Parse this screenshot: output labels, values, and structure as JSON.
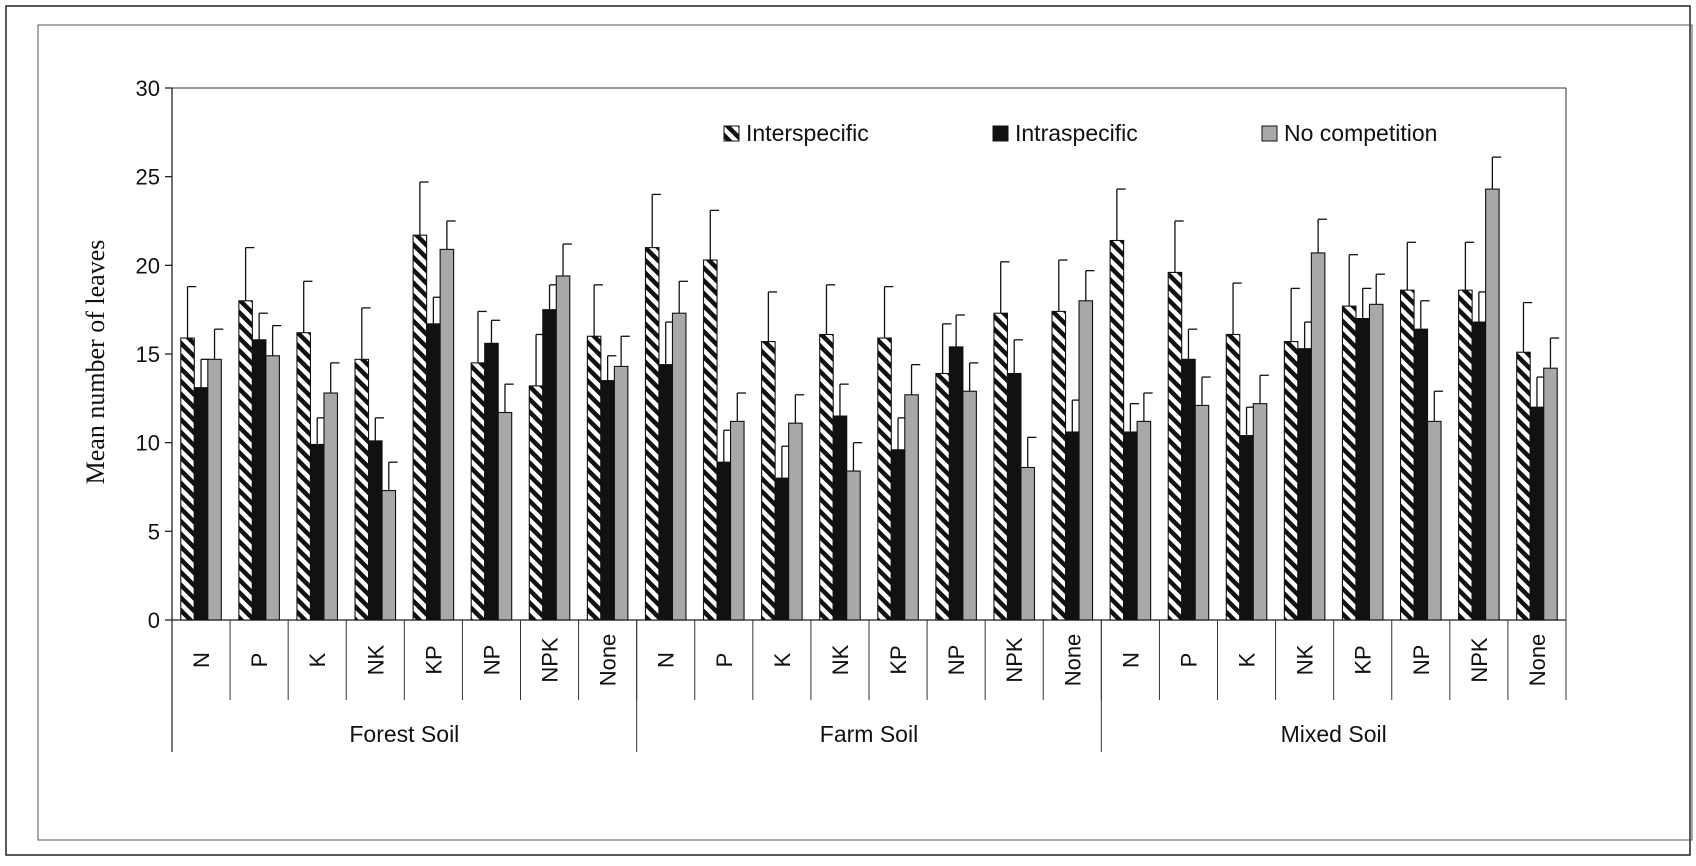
{
  "chart_data": {
    "type": "bar",
    "ylabel": "Mean number of leaves",
    "ylim": [
      0,
      30
    ],
    "yticks": [
      0,
      5,
      10,
      15,
      20,
      25,
      30
    ],
    "grid": false,
    "legend_position": "top-right",
    "groups": [
      {
        "name": "Forest Soil",
        "categories": [
          "N",
          "P",
          "K",
          "NK",
          "KP",
          "NP",
          "NPK",
          "None"
        ]
      },
      {
        "name": "Farm Soil",
        "categories": [
          "N",
          "P",
          "K",
          "NK",
          "KP",
          "NP",
          "NPK",
          "None"
        ]
      },
      {
        "name": "Mixed Soil",
        "categories": [
          "N",
          "P",
          "K",
          "NK",
          "KP",
          "NP",
          "NPK",
          "None"
        ]
      }
    ],
    "categories": [
      "N",
      "P",
      "K",
      "NK",
      "KP",
      "NP",
      "NPK",
      "None",
      "N",
      "P",
      "K",
      "NK",
      "KP",
      "NP",
      "NPK",
      "None",
      "N",
      "P",
      "K",
      "NK",
      "KP",
      "NP",
      "NPK",
      "None"
    ],
    "series": [
      {
        "name": "Interspecific",
        "pattern": "hatched",
        "color": "#ffffff",
        "values": [
          15.9,
          18.0,
          16.2,
          14.7,
          21.7,
          14.5,
          13.2,
          16.0,
          21.0,
          20.3,
          15.7,
          16.1,
          15.9,
          13.9,
          17.3,
          17.4,
          21.4,
          19.6,
          16.1,
          15.7,
          17.7,
          18.6,
          18.6,
          15.1
        ],
        "errors": [
          2.9,
          3.0,
          2.9,
          2.9,
          3.0,
          2.9,
          2.9,
          2.9,
          3.0,
          2.8,
          2.8,
          2.8,
          2.9,
          2.8,
          2.9,
          2.9,
          2.9,
          2.9,
          2.9,
          3.0,
          2.9,
          2.7,
          2.7,
          2.8
        ]
      },
      {
        "name": "Intraspecific",
        "pattern": "solid",
        "color": "#111111",
        "values": [
          13.1,
          15.8,
          9.9,
          10.1,
          16.7,
          15.6,
          17.5,
          13.5,
          14.4,
          8.9,
          8.0,
          11.5,
          9.6,
          15.4,
          13.9,
          10.6,
          10.6,
          14.7,
          10.4,
          15.3,
          17.0,
          16.4,
          16.8,
          12.0
        ],
        "errors": [
          1.6,
          1.5,
          1.5,
          1.3,
          1.5,
          1.3,
          1.4,
          1.4,
          2.4,
          1.8,
          1.8,
          1.8,
          1.8,
          1.8,
          1.9,
          1.8,
          1.6,
          1.7,
          1.6,
          1.5,
          1.7,
          1.6,
          1.7,
          1.7
        ]
      },
      {
        "name": "No competition",
        "pattern": "solid",
        "color": "#a8a8a8",
        "values": [
          14.7,
          14.9,
          12.8,
          7.3,
          20.9,
          11.7,
          19.4,
          14.3,
          17.3,
          11.2,
          11.1,
          8.4,
          12.7,
          12.9,
          8.6,
          18.0,
          11.2,
          12.1,
          12.2,
          20.7,
          17.8,
          11.2,
          24.3,
          14.2
        ],
        "errors": [
          1.7,
          1.7,
          1.7,
          1.6,
          1.6,
          1.6,
          1.8,
          1.7,
          1.8,
          1.6,
          1.6,
          1.6,
          1.7,
          1.6,
          1.7,
          1.7,
          1.6,
          1.6,
          1.6,
          1.9,
          1.7,
          1.7,
          1.8,
          1.7
        ]
      }
    ]
  }
}
